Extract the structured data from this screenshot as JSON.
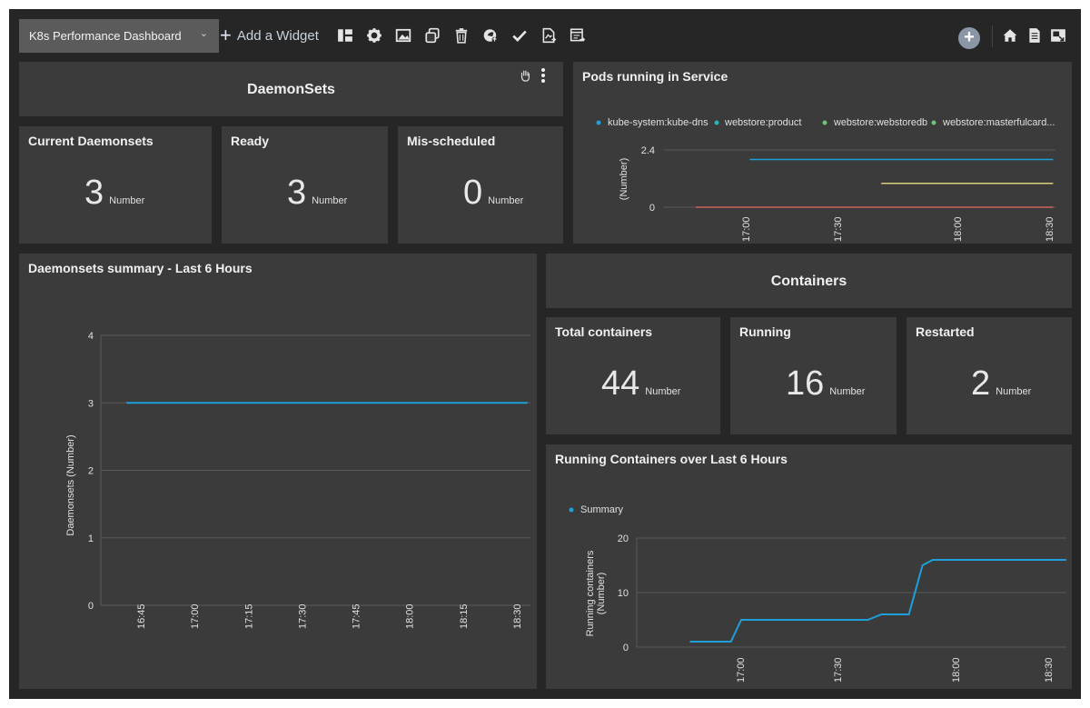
{
  "toolbar": {
    "dashboard_name": "K8s Performance Dashboard",
    "add_widget_label": "Add a Widget",
    "icons": [
      "layout-icon",
      "settings-icon",
      "image-icon",
      "clone-icon",
      "delete-icon",
      "publish-icon",
      "check-icon",
      "export-icon",
      "report-icon"
    ],
    "right_icons": [
      "add-circle-icon",
      "home-icon",
      "document-icon",
      "fullscreen-icon"
    ]
  },
  "daemonsets": {
    "section_title": "DaemonSets",
    "current": {
      "title": "Current Daemonsets",
      "value": "3",
      "unit": "Number"
    },
    "ready": {
      "title": "Ready",
      "value": "3",
      "unit": "Number"
    },
    "misscheduled": {
      "title": "Mis-scheduled",
      "value": "0",
      "unit": "Number"
    }
  },
  "pods": {
    "title": "Pods running in Service",
    "legend": [
      "kube-system:kube-dns",
      "webstore:product",
      "webstore:webstoredb",
      "webstore:masterfulcard..."
    ],
    "ylabel": "(Number)",
    "yticks": [
      "2.4",
      "0"
    ],
    "xticks": [
      "17:00",
      "17:30",
      "18:00",
      "18:30"
    ]
  },
  "daemon_summary": {
    "title": "Daemonsets summary - Last 6 Hours",
    "ylabel": "Daemonsets (Number)",
    "yticks": [
      "4",
      "3",
      "2",
      "1",
      "0"
    ],
    "xticks": [
      "16:45",
      "17:00",
      "17:15",
      "17:30",
      "17:45",
      "18:00",
      "18:15",
      "18:30"
    ]
  },
  "containers": {
    "section_title": "Containers",
    "total": {
      "title": "Total containers",
      "value": "44",
      "unit": "Number"
    },
    "running": {
      "title": "Running",
      "value": "16",
      "unit": "Number"
    },
    "restarted": {
      "title": "Restarted",
      "value": "2",
      "unit": "Number"
    }
  },
  "running_chart": {
    "title": "Running Containers over Last 6 Hours",
    "legend": "Summary",
    "ylabel1": "Running containers",
    "ylabel2": "(Number)",
    "yticks": [
      "20",
      "10",
      "0"
    ],
    "xticks": [
      "17:00",
      "17:30",
      "18:00",
      "18:30"
    ]
  },
  "colors": {
    "accent": "#1e9fd8",
    "yellow": "#d9d07a",
    "red": "#c9655a",
    "green": "#6cc57a",
    "teal": "#27b3b8"
  },
  "chart_data": [
    {
      "type": "line",
      "title": "Pods running in Service",
      "ylabel": "(Number)",
      "ylim": [
        0,
        2.4
      ],
      "series": [
        {
          "name": "kube-system:kube-dns",
          "points": [
            [
              "17:02",
              2
            ],
            [
              "18:32",
              2
            ]
          ]
        },
        {
          "name": "webstore:webstoredb",
          "points": [
            [
              "17:41",
              1
            ],
            [
              "18:32",
              1
            ]
          ]
        },
        {
          "name": "webstore:masterfulcard...",
          "points": [
            [
              "16:46",
              0
            ],
            [
              "18:32",
              0
            ]
          ]
        }
      ]
    },
    {
      "type": "line",
      "title": "Daemonsets summary - Last 6 Hours",
      "ylabel": "Daemonsets (Number)",
      "ylim": [
        0,
        4
      ],
      "series": [
        {
          "name": "",
          "points": [
            [
              "16:41",
              3
            ],
            [
              "18:33",
              3
            ]
          ]
        }
      ]
    },
    {
      "type": "line",
      "title": "Running Containers over Last 6 Hours",
      "ylabel": "Running containers (Number)",
      "ylim": [
        0,
        20
      ],
      "series": [
        {
          "name": "Summary",
          "points": [
            [
              "16:45",
              1
            ],
            [
              "16:57",
              1
            ],
            [
              "17:00",
              5
            ],
            [
              "17:37",
              5
            ],
            [
              "17:41",
              6
            ],
            [
              "17:49",
              6
            ],
            [
              "17:53",
              15
            ],
            [
              "17:56",
              16
            ],
            [
              "18:35",
              16
            ]
          ]
        }
      ]
    }
  ]
}
